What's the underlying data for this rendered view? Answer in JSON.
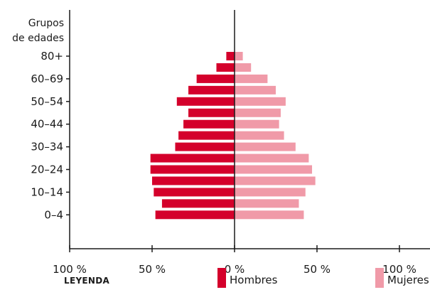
{
  "chart_data": {
    "type": "bar",
    "orientation": "horizontal-pyramid",
    "y_title_line1": "Grupos",
    "y_title_line2": "de edades",
    "categories": [
      "0-4",
      "5-9",
      "10-14",
      "15-19",
      "20-24",
      "25-29",
      "30-34",
      "35-39",
      "40-44",
      "45-49",
      "50-54",
      "55-59",
      "60-69",
      "70-79",
      "80+"
    ],
    "y_tick_labels": [
      {
        "category": "0-4",
        "label": "0–4"
      },
      {
        "category": "10-14",
        "label": "10–14"
      },
      {
        "category": "20-24",
        "label": "20–24"
      },
      {
        "category": "30-34",
        "label": "30–34"
      },
      {
        "category": "40-44",
        "label": "40–44"
      },
      {
        "category": "50-54",
        "label": "50–54"
      },
      {
        "category": "60-69",
        "label": "60–69"
      },
      {
        "category": "80+",
        "label": "80+"
      }
    ],
    "series": [
      {
        "name": "Hombres",
        "side": "left",
        "color": "#d4002b",
        "values": [
          48,
          44,
          49,
          50,
          51,
          51,
          36,
          34,
          31,
          28,
          35,
          28,
          23,
          11,
          5
        ]
      },
      {
        "name": "Mujeres",
        "side": "right",
        "color": "#f09aa8",
        "values": [
          42,
          39,
          43,
          49,
          47,
          45,
          37,
          30,
          27,
          28,
          31,
          25,
          20,
          10,
          5
        ]
      }
    ],
    "x_ticks": [
      {
        "value": -100,
        "label": "100 %"
      },
      {
        "value": -50,
        "label": "50 %"
      },
      {
        "value": 0,
        "label": "0 %"
      },
      {
        "value": 50,
        "label": "50 %"
      },
      {
        "value": 100,
        "label": "100 %"
      }
    ],
    "xlim": [
      -100,
      100
    ],
    "grid": false,
    "legend": {
      "title": "LEYENDA",
      "placement": "bottom",
      "items": [
        {
          "label": "Hombres",
          "color": "#d4002b"
        },
        {
          "label": "Mujeres",
          "color": "#f09aa8"
        }
      ]
    }
  }
}
